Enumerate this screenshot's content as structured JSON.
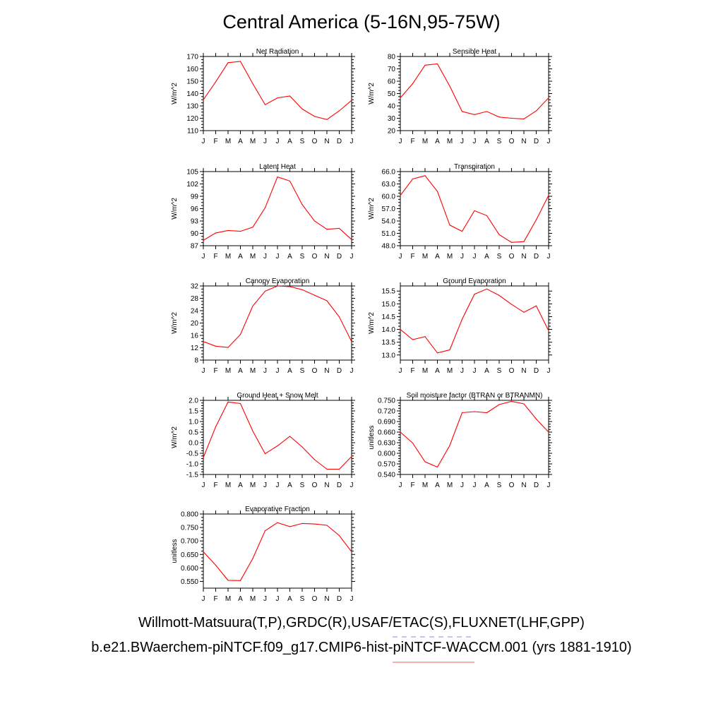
{
  "title": "Central America (5-16N,95-75W)",
  "footer_line1": "Willmott-Matsuura(T,P),GRDC(R),USAF/ETAC(S),FLUXNET(LHF,GPP)",
  "footer_line2": "b.e21.BWaerchem-piNTCF.f09_g17.CMIP6-hist-piNTCF-WACCM.001 (yrs 1881-1910)",
  "colors": {
    "series": "#ff0000",
    "axes": "#000000",
    "footer_dash1": "#8a8ae6",
    "footer_dash2": "#f08080"
  },
  "chart_data": [
    {
      "type": "line",
      "title": "Net Radiation",
      "ylabel": "W/m^2",
      "categories": [
        "J",
        "F",
        "M",
        "A",
        "M",
        "J",
        "J",
        "A",
        "S",
        "O",
        "N",
        "D",
        "J"
      ],
      "values": [
        135,
        149.5,
        165,
        166,
        148,
        131,
        136.5,
        138,
        127.5,
        121.5,
        119,
        126,
        134.5
      ],
      "ylim": [
        110,
        170
      ],
      "yticks": [
        110,
        120,
        130,
        140,
        150,
        160,
        170
      ],
      "ytick_labels": [
        "110",
        "120",
        "130",
        "140",
        "150",
        "160",
        "170"
      ]
    },
    {
      "type": "line",
      "title": "Sensible Heat",
      "ylabel": "W/m^2",
      "categories": [
        "J",
        "F",
        "M",
        "A",
        "M",
        "J",
        "J",
        "A",
        "S",
        "O",
        "N",
        "D",
        "J"
      ],
      "values": [
        46.5,
        58,
        73,
        74,
        56,
        35.5,
        33,
        35.5,
        31,
        30,
        29.5,
        36,
        46.5
      ],
      "ylim": [
        20,
        80
      ],
      "yticks": [
        20,
        30,
        40,
        50,
        60,
        70,
        80
      ],
      "ytick_labels": [
        "20",
        "30",
        "40",
        "50",
        "60",
        "70",
        "80"
      ]
    },
    {
      "type": "line",
      "title": "Latent Heat",
      "ylabel": "W/m^2",
      "categories": [
        "J",
        "F",
        "M",
        "A",
        "M",
        "J",
        "J",
        "A",
        "S",
        "O",
        "N",
        "D",
        "J"
      ],
      "values": [
        88.3,
        90.1,
        90.7,
        90.5,
        91.5,
        96.2,
        103.7,
        102.7,
        97,
        93,
        91,
        91.2,
        88.5
      ],
      "ylim": [
        87,
        105
      ],
      "yticks": [
        87,
        90,
        93,
        96,
        99,
        102,
        105
      ],
      "ytick_labels": [
        "87",
        "90",
        "93",
        "96",
        "99",
        "102",
        "105"
      ]
    },
    {
      "type": "line",
      "title": "Transpiration",
      "ylabel": "W/m^2",
      "categories": [
        "J",
        "F",
        "M",
        "A",
        "M",
        "J",
        "J",
        "A",
        "S",
        "O",
        "N",
        "D",
        "J"
      ],
      "values": [
        60.2,
        64.2,
        65,
        61.2,
        53,
        51.5,
        56.5,
        55.3,
        50.7,
        48.8,
        49,
        54.3,
        60.2
      ],
      "ylim": [
        48,
        66
      ],
      "yticks": [
        48,
        51,
        54,
        57,
        60,
        63,
        66
      ],
      "ytick_labels": [
        "48.0",
        "51.0",
        "54.0",
        "57.0",
        "60.0",
        "63.0",
        "66.0"
      ]
    },
    {
      "type": "line",
      "title": "Canopy Evaporation",
      "ylabel": "W/m^2",
      "categories": [
        "J",
        "F",
        "M",
        "A",
        "M",
        "J",
        "J",
        "A",
        "S",
        "O",
        "N",
        "D",
        "J"
      ],
      "values": [
        14,
        12.5,
        12.1,
        16.3,
        25.5,
        30.3,
        32,
        31.8,
        30.8,
        29,
        27.2,
        22,
        14
      ],
      "ylim": [
        8,
        32
      ],
      "yticks": [
        8,
        12,
        16,
        20,
        24,
        28,
        32
      ],
      "ytick_labels": [
        "8",
        "12",
        "16",
        "20",
        "24",
        "28",
        "32"
      ]
    },
    {
      "type": "line",
      "title": "Ground Evaporation",
      "ylabel": "W/m^2",
      "categories": [
        "J",
        "F",
        "M",
        "A",
        "M",
        "J",
        "J",
        "A",
        "S",
        "O",
        "N",
        "D",
        "J"
      ],
      "values": [
        14.0,
        13.6,
        13.72,
        13.08,
        13.2,
        14.4,
        15.38,
        15.58,
        15.33,
        14.98,
        14.67,
        14.92,
        13.95
      ],
      "ylim": [
        12.8,
        15.7
      ],
      "yticks": [
        13.0,
        13.5,
        14.0,
        14.5,
        15.0,
        15.5
      ],
      "ytick_labels": [
        "13.0",
        "13.5",
        "14.0",
        "14.5",
        "15.0",
        "15.5"
      ]
    },
    {
      "type": "line",
      "title": "Ground Heat + Snow Melt",
      "ylabel": "W/m^2",
      "categories": [
        "J",
        "F",
        "M",
        "A",
        "M",
        "J",
        "J",
        "A",
        "S",
        "O",
        "N",
        "D",
        "J"
      ],
      "values": [
        -0.7,
        0.75,
        1.92,
        1.85,
        0.55,
        -0.52,
        -0.15,
        0.3,
        -0.2,
        -0.8,
        -1.25,
        -1.25,
        -0.65
      ],
      "ylim": [
        -1.5,
        2.0
      ],
      "yticks": [
        -1.5,
        -1.0,
        -0.5,
        0,
        0.5,
        1.0,
        1.5,
        2.0
      ],
      "ytick_labels": [
        "-1.5",
        "-1.0",
        "-0.5",
        "0.0",
        "0.5",
        "1.0",
        "1.5",
        "2.0"
      ]
    },
    {
      "type": "line",
      "title": "Soil moisture factor (BTRAN or BTRANMN)",
      "ylabel": "unitless",
      "categories": [
        "J",
        "F",
        "M",
        "A",
        "M",
        "J",
        "J",
        "A",
        "S",
        "O",
        "N",
        "D",
        "J"
      ],
      "values": [
        0.66,
        0.629,
        0.576,
        0.561,
        0.622,
        0.715,
        0.718,
        0.715,
        0.738,
        0.747,
        0.74,
        0.697,
        0.66
      ],
      "ylim": [
        0.54,
        0.75
      ],
      "yticks": [
        0.54,
        0.57,
        0.6,
        0.63,
        0.66,
        0.69,
        0.72,
        0.75
      ],
      "ytick_labels": [
        "0.540",
        "0.570",
        "0.600",
        "0.630",
        "0.660",
        "0.690",
        "0.720",
        "0.750"
      ]
    },
    {
      "type": "line",
      "title": "Evaporative Fraction",
      "ylabel": "unitless",
      "categories": [
        "J",
        "F",
        "M",
        "A",
        "M",
        "J",
        "J",
        "A",
        "S",
        "O",
        "N",
        "D",
        "J"
      ],
      "values": [
        0.66,
        0.61,
        0.554,
        0.553,
        0.635,
        0.738,
        0.768,
        0.753,
        0.765,
        0.763,
        0.758,
        0.72,
        0.66
      ],
      "ylim": [
        0.525,
        0.8
      ],
      "yticks": [
        0.55,
        0.6,
        0.65,
        0.7,
        0.75,
        0.8
      ],
      "ytick_labels": [
        "0.550",
        "0.600",
        "0.650",
        "0.700",
        "0.750",
        "0.800"
      ]
    }
  ]
}
